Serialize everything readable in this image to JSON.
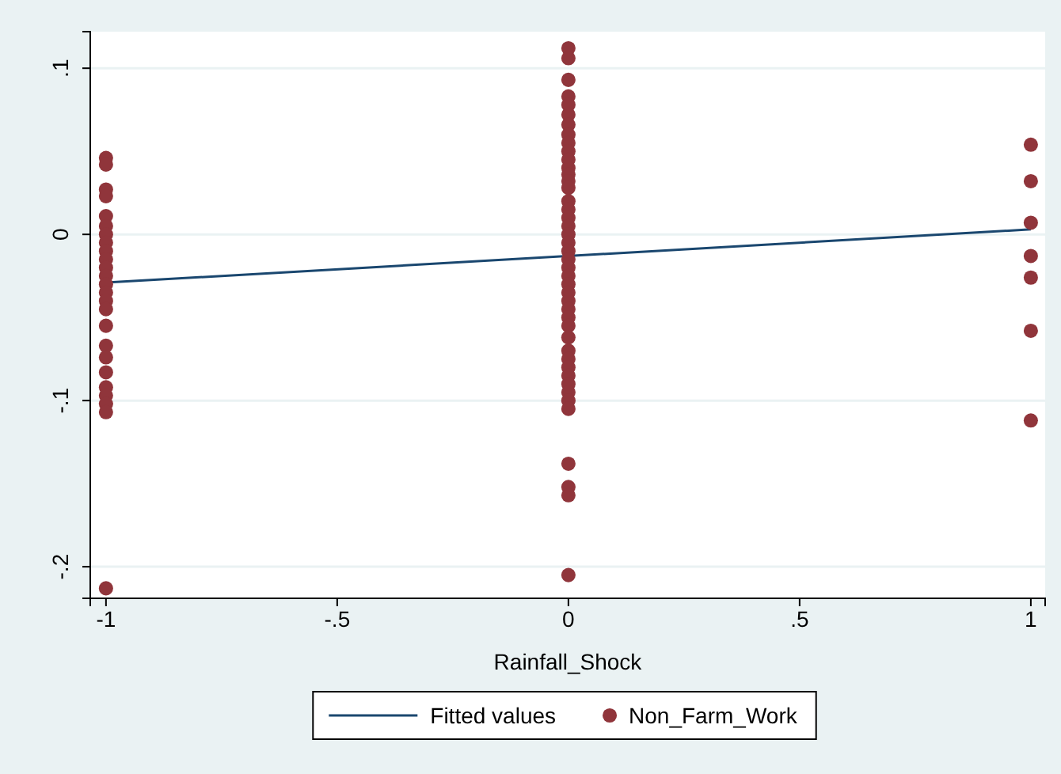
{
  "chart_data": {
    "type": "scatter",
    "xlabel": "Rainfall_Shock",
    "xlim": [
      -1.034,
      1.031
    ],
    "ylim": [
      -0.219,
      0.122
    ],
    "xticks": [
      {
        "value": -1,
        "label": "-1"
      },
      {
        "value": -0.5,
        "label": "-.5"
      },
      {
        "value": 0,
        "label": "0"
      },
      {
        "value": 0.5,
        "label": ".5"
      },
      {
        "value": 1,
        "label": "1"
      }
    ],
    "yticks": [
      {
        "value": -0.2,
        "label": "-.2"
      },
      {
        "value": -0.1,
        "label": "-.1"
      },
      {
        "value": 0,
        "label": "0"
      },
      {
        "value": 0.1,
        "label": ".1"
      }
    ],
    "grid": "y",
    "legend": "bottom",
    "series": [
      {
        "name": "Fitted values",
        "type": "line",
        "color": "#1a476f",
        "x": [
          -1,
          1
        ],
        "values": [
          -0.029,
          0.003
        ]
      },
      {
        "name": "Non_Farm_Work",
        "marker": "circle",
        "color": "#90353b",
        "x": [
          -1,
          -1,
          -1,
          -1,
          -1,
          -1,
          -1,
          -1,
          -1,
          -1,
          -1,
          -1,
          -1,
          -1,
          -1,
          -1,
          -1,
          -1,
          -1,
          -1,
          -1,
          -1,
          -1,
          -1,
          -1,
          0,
          0,
          0,
          0,
          0,
          0,
          0,
          0,
          0,
          0,
          0,
          0,
          0,
          0,
          0,
          0,
          0,
          0,
          0,
          0,
          0,
          0,
          0,
          0,
          0,
          0,
          0,
          0,
          0,
          0,
          0,
          0,
          0,
          0,
          0,
          0,
          0,
          0,
          0,
          0,
          0,
          0,
          0,
          0,
          1,
          1,
          1,
          1,
          1,
          1,
          1
        ],
        "values": [
          0.046,
          0.042,
          0.027,
          0.023,
          0.011,
          0.005,
          0,
          -0.005,
          -0.01,
          -0.015,
          -0.02,
          -0.025,
          -0.03,
          -0.035,
          -0.04,
          -0.045,
          -0.055,
          -0.067,
          -0.074,
          -0.083,
          -0.092,
          -0.097,
          -0.102,
          -0.107,
          -0.213,
          0.112,
          0.106,
          0.093,
          0.083,
          0.078,
          0.072,
          0.066,
          0.06,
          0.055,
          0.05,
          0.045,
          0.04,
          0.036,
          0.032,
          0.028,
          0.02,
          0.015,
          0.01,
          0.005,
          0,
          -0.005,
          -0.01,
          -0.015,
          -0.02,
          -0.025,
          -0.03,
          -0.035,
          -0.04,
          -0.045,
          -0.05,
          -0.055,
          -0.062,
          -0.07,
          -0.075,
          -0.08,
          -0.085,
          -0.09,
          -0.095,
          -0.1,
          -0.105,
          -0.138,
          -0.152,
          -0.157,
          -0.205,
          0.054,
          0.032,
          0.007,
          -0.013,
          -0.026,
          -0.058,
          -0.112
        ]
      }
    ]
  }
}
